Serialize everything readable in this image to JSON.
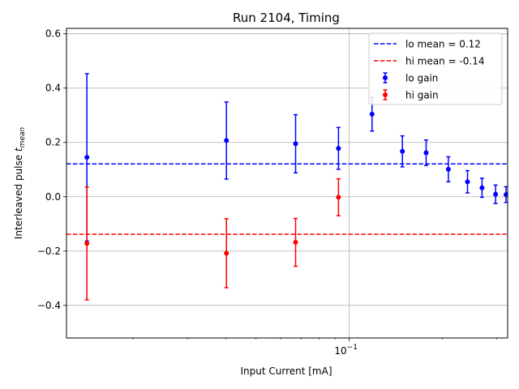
{
  "chart_data": {
    "type": "scatter",
    "title": "Run 2104, Timing",
    "xlabel": "Input Current [mA]",
    "ylabel_main": "Interleaved pulse ",
    "ylabel_math": "t",
    "ylabel_sub": "mean",
    "xscale": "log",
    "xlim": [
      0.0122,
      0.325
    ],
    "ylim": [
      -0.52,
      0.62
    ],
    "x_tick_label": "10",
    "x_tick_label_exp": "−1",
    "x_tick_value": 0.1,
    "x_minor_ticks": [
      0.02,
      0.03,
      0.04,
      0.05,
      0.06,
      0.07,
      0.08,
      0.09,
      0.2,
      0.3
    ],
    "y_ticks": [
      -0.4,
      -0.2,
      0.0,
      0.2,
      0.4,
      0.6
    ],
    "y_tick_labels": [
      "−0.4",
      "−0.2",
      "0.0",
      "0.2",
      "0.4",
      "0.6"
    ],
    "grid": true,
    "legend_position": "top-right",
    "series": [
      {
        "name": "lo gain",
        "color": "#0000ff",
        "points": [
          {
            "x": 0.0142,
            "y": 0.145,
            "err": 0.308
          },
          {
            "x": 0.0401,
            "y": 0.207,
            "err": 0.142
          },
          {
            "x": 0.0671,
            "y": 0.195,
            "err": 0.107
          },
          {
            "x": 0.0923,
            "y": 0.178,
            "err": 0.077
          },
          {
            "x": 0.1185,
            "y": 0.304,
            "err": 0.062
          },
          {
            "x": 0.1485,
            "y": 0.167,
            "err": 0.057
          },
          {
            "x": 0.1772,
            "y": 0.162,
            "err": 0.047
          },
          {
            "x": 0.2091,
            "y": 0.101,
            "err": 0.046
          },
          {
            "x": 0.2411,
            "y": 0.055,
            "err": 0.041
          },
          {
            "x": 0.2686,
            "y": 0.033,
            "err": 0.035
          },
          {
            "x": 0.2971,
            "y": 0.009,
            "err": 0.034
          },
          {
            "x": 0.3212,
            "y": 0.008,
            "err": 0.029
          },
          {
            "x": 0.3462,
            "y": -0.002,
            "err": 0.03
          }
        ]
      },
      {
        "name": "hi gain",
        "color": "#ff0000",
        "points": [
          {
            "x": 0.0142,
            "y": -0.172,
            "err": 0.208
          },
          {
            "x": 0.0401,
            "y": -0.208,
            "err": 0.127
          },
          {
            "x": 0.0671,
            "y": -0.168,
            "err": 0.088
          },
          {
            "x": 0.0923,
            "y": -0.002,
            "err": 0.068
          }
        ]
      }
    ],
    "reference_lines": [
      {
        "name": "lo mean = 0.12",
        "y": 0.121,
        "color": "#0000ff"
      },
      {
        "name": "hi mean = -0.14",
        "y": -0.138,
        "color": "#ff0000"
      }
    ]
  }
}
